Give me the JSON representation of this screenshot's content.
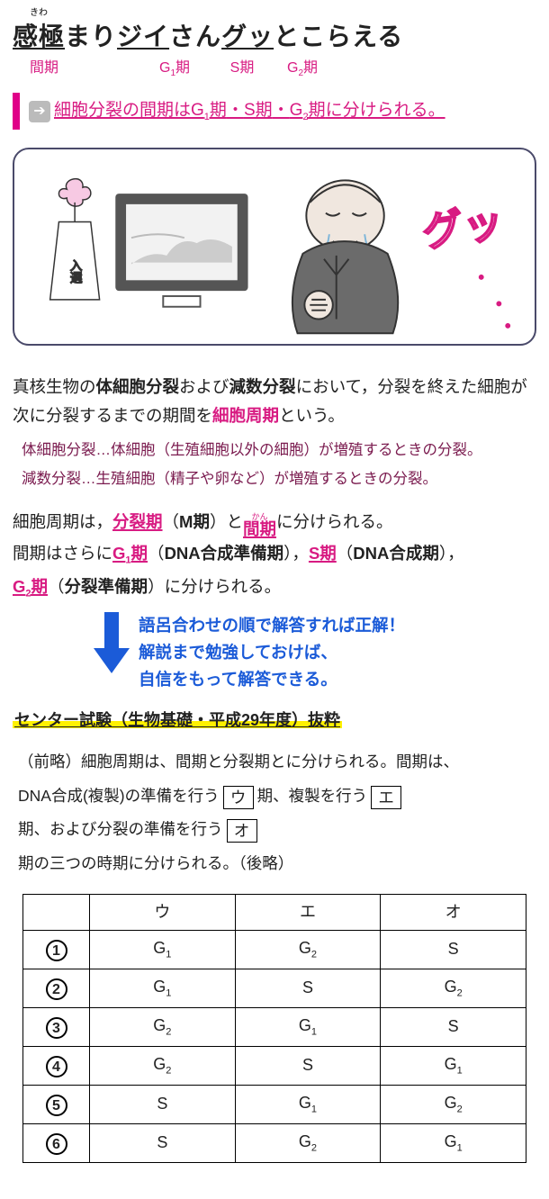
{
  "mnemonic": {
    "ruby": "きわ",
    "seg1_key": "感極",
    "seg1_rest": "まり",
    "seg2_key": "ジイ",
    "seg2_rest": "さん",
    "seg3_key": "グッ",
    "seg3_rest": "とこらえる",
    "labels": {
      "l1": "間期",
      "l2_pre": "G",
      "l2_sub": "1",
      "l2_post": "期",
      "l3": "S期",
      "l4_pre": "G",
      "l4_sub": "2",
      "l4_post": "期"
    }
  },
  "summary": {
    "arrow_glyph": "➔",
    "t1": "細胞分裂の間期は",
    "g1_pre": "G",
    "g1_sub": "1",
    "g1_post": "期",
    "dot1": "・",
    "s": "S期",
    "dot2": "・",
    "g2_pre": "G",
    "g2_sub": "2",
    "g2_post": "期",
    "t2": "に分けられる。"
  },
  "para1": {
    "a": "真核生物の",
    "b1": "体細胞分裂",
    "c": "および",
    "b2": "減数分裂",
    "d": "において，分裂を終えた細胞が次に分裂するまでの期間を",
    "pink": "細胞周期",
    "e": "という。"
  },
  "defs": {
    "line1": "体細胞分裂…体細胞（生殖細胞以外の細胞）が増殖するときの分裂。",
    "line2": "減数分裂…生殖細胞（精子や卵など）が増殖するときの分裂。"
  },
  "para2": {
    "a": "細胞周期は，",
    "p1": "分裂期",
    "paren1a": "（",
    "m": "M期",
    "paren1b": "）",
    "and": "と",
    "kan_rt": "かん",
    "kan": "間期",
    "b": "に分けられる。",
    "c": "間期はさらに",
    "g1_pre": "G",
    "g1_sub": "1",
    "g1_post": "期",
    "g1_paren": "（",
    "g1_desc": "DNA合成準備期",
    "g1_paren2": "）",
    "comma1": "，",
    "s": "S期",
    "s_paren": "（",
    "s_desc": "DNA合成期",
    "s_paren2": "）",
    "comma2": "，",
    "g2_pre": "G",
    "g2_sub": "2",
    "g2_post": "期",
    "g2_paren": "（",
    "g2_desc": "分裂準備期",
    "g2_paren2": "）",
    "d": "に分けられる。"
  },
  "hint": {
    "l1": "語呂合わせの順で解答すれば正解！",
    "l2": "解説まで勉強しておけば、",
    "l3": "自信をもって解答できる。"
  },
  "exam_heading": "センター試験（生物基礎・平成29年度）抜粋",
  "question": {
    "a": "（前略）細胞周期は、間期と分裂期とに分けられる。間期は、",
    "b": "DNA合成(複製)の準備を行う",
    "box_u": "ウ",
    "c": "期、複製を行う",
    "box_e": "エ",
    "d": "期、および分裂の準備を行う",
    "box_o": "オ",
    "e": "期の三つの時期に分けられる。（後略）"
  },
  "table": {
    "head": {
      "blank": "",
      "u": "ウ",
      "e": "エ",
      "o": "オ"
    },
    "rows": [
      {
        "n": "1",
        "u_pre": "G",
        "u_sub": "1",
        "e_pre": "G",
        "e_sub": "2",
        "o_plain": "S"
      },
      {
        "n": "2",
        "u_pre": "G",
        "u_sub": "1",
        "e_plain": "S",
        "o_pre": "G",
        "o_sub": "2"
      },
      {
        "n": "3",
        "u_pre": "G",
        "u_sub": "2",
        "e_pre": "G",
        "e_sub": "1",
        "o_plain": "S"
      },
      {
        "n": "4",
        "u_pre": "G",
        "u_sub": "2",
        "e_plain": "S",
        "o_pre": "G",
        "o_sub": "1"
      },
      {
        "n": "5",
        "u_plain": "S",
        "e_pre": "G",
        "e_sub": "1",
        "o_pre": "G",
        "o_sub": "2"
      },
      {
        "n": "6",
        "u_plain": "S",
        "e_pre": "G",
        "e_sub": "2",
        "o_pre": "G",
        "o_sub": "1"
      }
    ]
  },
  "colors": {
    "pink": "#d81b82",
    "maroon": "#7a1a4e",
    "blue": "#1b5bd8",
    "highlight": "#fff100",
    "illus_border": "#4a4a6a"
  }
}
